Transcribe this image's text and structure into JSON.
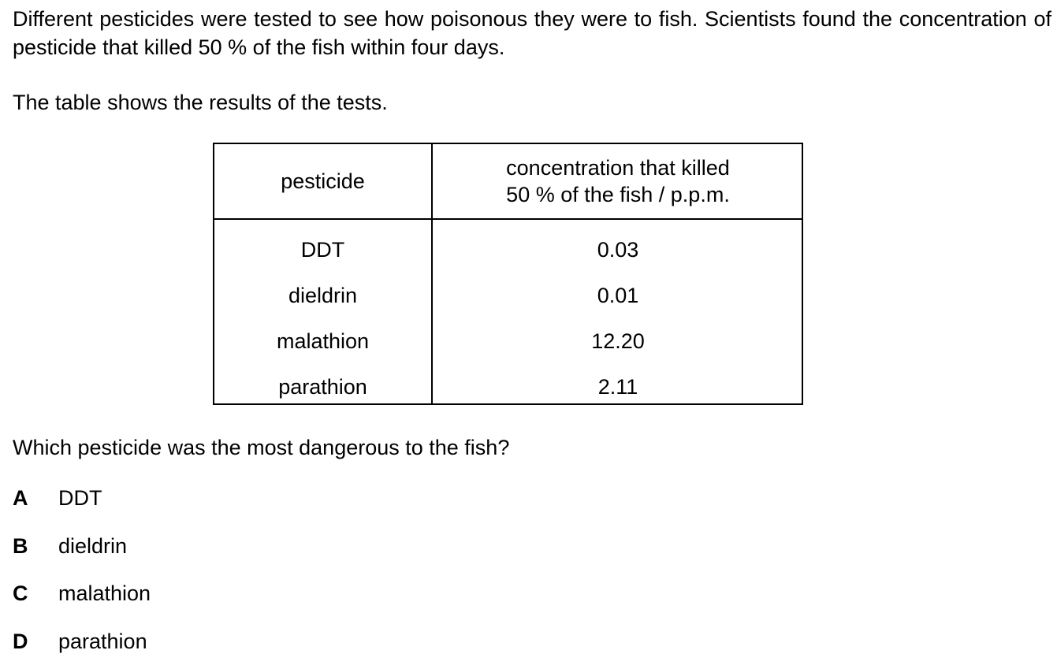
{
  "intro": "Different pesticides were tested to see how poisonous they were to fish. Scientists found the concentration of pesticide that killed 50 % of the fish within four days.",
  "table_intro": "The table shows the results of the tests.",
  "table": {
    "headers": {
      "pesticide": "pesticide",
      "concentration_line1": "concentration that killed",
      "concentration_line2": "50 % of the fish / p.p.m."
    },
    "rows": [
      {
        "pesticide": "DDT",
        "concentration": "0.03"
      },
      {
        "pesticide": "dieldrin",
        "concentration": "0.01"
      },
      {
        "pesticide": "malathion",
        "concentration": "12.20"
      },
      {
        "pesticide": "parathion",
        "concentration": "2.11"
      }
    ]
  },
  "question": "Which pesticide was the most dangerous to the fish?",
  "options": [
    {
      "letter": "A",
      "text": "DDT"
    },
    {
      "letter": "B",
      "text": "dieldrin"
    },
    {
      "letter": "C",
      "text": "malathion"
    },
    {
      "letter": "D",
      "text": "parathion"
    }
  ]
}
